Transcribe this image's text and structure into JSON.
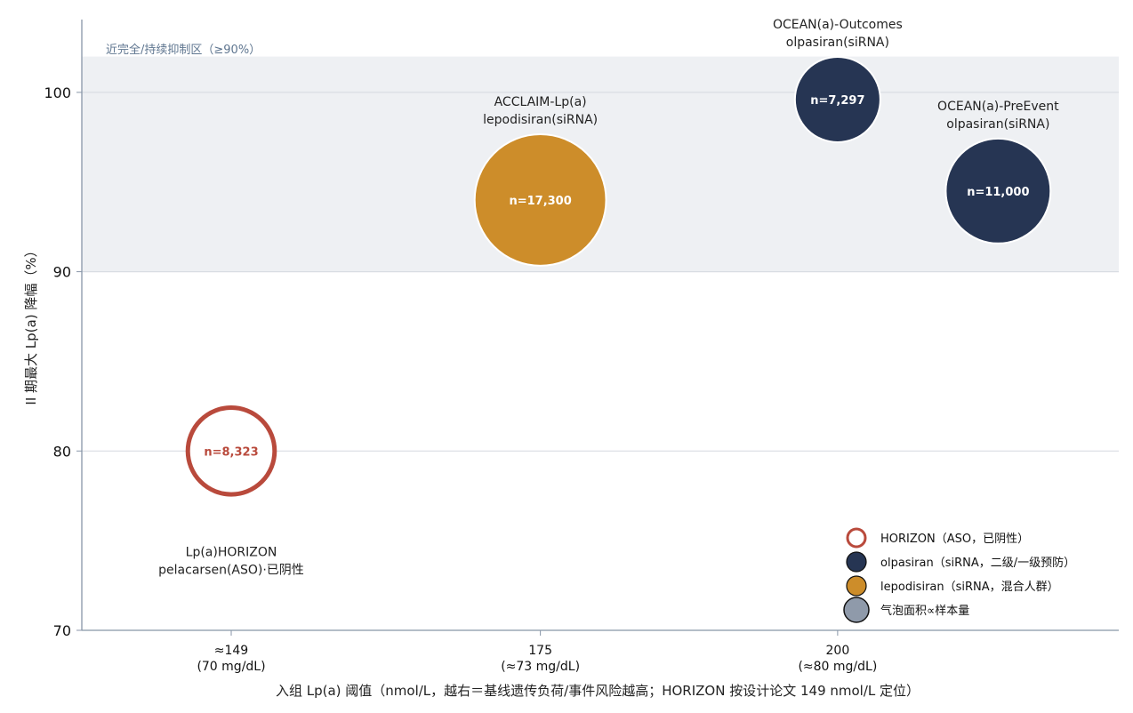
{
  "chart_data": {
    "type": "scatter",
    "xlabel": "入组 Lp(a) 阈值（nmol/L，越右＝基线遗传负荷/事件风险越高；HORIZON 按设计论文 149 nmol/L 定位）",
    "ylabel": "II 期最大 Lp(a) 降幅（%）",
    "ylim": [
      70,
      104
    ],
    "yticks": [
      70,
      80,
      90,
      100
    ],
    "grid": "horizontal",
    "legend_position": "bottom-right",
    "x_categories": [
      {
        "value": 149,
        "line1": "≈149",
        "line2": "(70 mg/dL)"
      },
      {
        "value": 175,
        "line1": "175",
        "line2": "(≈73 mg/dL)"
      },
      {
        "value": 200,
        "line1": "200",
        "line2": "(≈80 mg/dL)"
      }
    ],
    "band": {
      "y_from": 90,
      "y_to": 102,
      "label": "近完全/持续抑制区（≥90%）"
    },
    "points": [
      {
        "title1": "Lp(a)HORIZON",
        "title2": "pelacarsen(ASO)·已阴性",
        "x": 149,
        "y": 80,
        "n": 8323,
        "n_label": "n=8,323",
        "group": "horizon",
        "label_pos": "below"
      },
      {
        "title1": "ACCLAIM-Lp(a)",
        "title2": "lepodisiran(siRNA)",
        "x": 175,
        "y": 94,
        "n": 17300,
        "n_label": "n=17,300",
        "group": "lepodisiran",
        "label_pos": "above"
      },
      {
        "title1": "OCEAN(a)-Outcomes",
        "title2": "olpasiran(siRNA)",
        "x": 200,
        "y": 99.6,
        "n": 7297,
        "n_label": "n=7,297",
        "group": "olpasiran",
        "label_pos": "above"
      },
      {
        "title1": "OCEAN(a)-PreEvent",
        "title2": "olpasiran(siRNA)",
        "x": 213.5,
        "y": 94.5,
        "n": 11000,
        "n_label": "n=11,000",
        "group": "olpasiran",
        "label_pos": "above"
      }
    ],
    "legend": [
      {
        "label": "HORIZON（ASO，已阴性）",
        "style": "horizon"
      },
      {
        "label": "olpasiran（siRNA，二级/一级预防）",
        "style": "olpasiran"
      },
      {
        "label": "lepodisiran（siRNA，混合人群）",
        "style": "lepodisiran"
      },
      {
        "label": "气泡面积∝样本量",
        "style": "size"
      }
    ],
    "colors": {
      "horizon": "#b94a3c",
      "olpasiran": "#263553",
      "lepodisiran": "#cd8d2a",
      "size": "#8f9aaa",
      "band": "#eef0f3",
      "grid": "#d9dde3",
      "axis": "#8896a8"
    }
  }
}
